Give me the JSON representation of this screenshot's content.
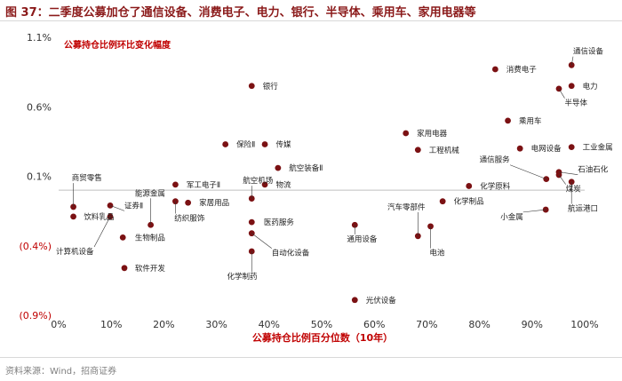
{
  "figure_title": "图 37：二季度公募加仓了通信设备、消费电子、电力、银行、半导体、乘用车、家用电器等",
  "source": "资料来源：Wind，招商证券",
  "colors": {
    "title": "#8b1a1a",
    "marker": "#7b1113",
    "axis_red": "#c00000",
    "baseline": "#bfbfbf"
  },
  "chart_data": {
    "type": "scatter",
    "title": "公募持仓比例环比变化幅度",
    "xlabel": "公募持仓比例百分位数（10年）",
    "ylabel": "",
    "xlim": [
      0,
      100
    ],
    "ylim": [
      -0.9,
      1.1
    ],
    "x_ticks": [
      0,
      10,
      20,
      30,
      40,
      50,
      60,
      70,
      80,
      90,
      100
    ],
    "x_tick_labels": [
      "0%",
      "10%",
      "20%",
      "30%",
      "40%",
      "50%",
      "60%",
      "70%",
      "80%",
      "90%",
      "100%"
    ],
    "y_ticks": [
      1.1,
      0.6,
      0.1,
      -0.4,
      -0.9
    ],
    "y_tick_labels": [
      "1.1%",
      "0.6%",
      "0.1%",
      "(0.4%)",
      "(0.9%)"
    ],
    "points": [
      {
        "label": "商贸零售",
        "x": 2.8,
        "y": -0.12,
        "lx": 2.5,
        "ly": 0.09
      },
      {
        "label": "饮料乳品",
        "x": 2.8,
        "y": -0.19,
        "lx": 4.8,
        "ly": -0.19
      },
      {
        "label": "计算机设备",
        "x": 9.8,
        "y": -0.19,
        "lx": -0.5,
        "ly": -0.44
      },
      {
        "label": "证券Ⅱ",
        "x": 9.8,
        "y": -0.11,
        "lx": 12.5,
        "ly": -0.11
      },
      {
        "label": "生物制品",
        "x": 12.2,
        "y": -0.34,
        "lx": 14.5,
        "ly": -0.34
      },
      {
        "label": "软件开发",
        "x": 12.5,
        "y": -0.56,
        "lx": 14.5,
        "ly": -0.56
      },
      {
        "label": "能源金属",
        "x": 17.5,
        "y": -0.25,
        "lx": 14.5,
        "ly": -0.02
      },
      {
        "label": "纺织服饰",
        "x": 22.2,
        "y": -0.08,
        "lx": 22,
        "ly": -0.2
      },
      {
        "label": "军工电子Ⅱ",
        "x": 22.2,
        "y": 0.04,
        "lx": 24.3,
        "ly": 0.04
      },
      {
        "label": "家居用品",
        "x": 24.6,
        "y": -0.09,
        "lx": 26.7,
        "ly": -0.09
      },
      {
        "label": "保险Ⅱ",
        "x": 31.7,
        "y": 0.33,
        "lx": 33.8,
        "ly": 0.33
      },
      {
        "label": "银行",
        "x": 36.7,
        "y": 0.75,
        "lx": 38.8,
        "ly": 0.75
      },
      {
        "label": "传媒",
        "x": 39.2,
        "y": 0.33,
        "lx": 41.3,
        "ly": 0.33
      },
      {
        "label": "航空装备Ⅱ",
        "x": 41.7,
        "y": 0.16,
        "lx": 43.8,
        "ly": 0.16
      },
      {
        "label": "航空机场",
        "x": 36.7,
        "y": -0.06,
        "lx": 35,
        "ly": 0.07
      },
      {
        "label": "物流",
        "x": 39.2,
        "y": 0.04,
        "lx": 41.3,
        "ly": 0.04
      },
      {
        "label": "医药服务",
        "x": 36.7,
        "y": -0.23,
        "lx": 39,
        "ly": -0.23
      },
      {
        "label": "自动化设备",
        "x": 36.7,
        "y": -0.31,
        "lx": 40.5,
        "ly": -0.45
      },
      {
        "label": "化学制药",
        "x": 36.7,
        "y": -0.44,
        "lx": 32,
        "ly": -0.62
      },
      {
        "label": "通用设备",
        "x": 56.3,
        "y": -0.25,
        "lx": 54.8,
        "ly": -0.35
      },
      {
        "label": "光伏设备",
        "x": 56.3,
        "y": -0.79,
        "lx": 58.4,
        "ly": -0.79
      },
      {
        "label": "家用电器",
        "x": 66.0,
        "y": 0.41,
        "lx": 68.1,
        "ly": 0.41
      },
      {
        "label": "工程机械",
        "x": 68.3,
        "y": 0.29,
        "lx": 70.4,
        "ly": 0.29
      },
      {
        "label": "汽车零部件",
        "x": 68.3,
        "y": -0.33,
        "lx": 62.5,
        "ly": -0.12
      },
      {
        "label": "电池",
        "x": 70.7,
        "y": -0.26,
        "lx": 70.5,
        "ly": -0.45
      },
      {
        "label": "化学制品",
        "x": 73.0,
        "y": -0.08,
        "lx": 75.1,
        "ly": -0.08
      },
      {
        "label": "化学原料",
        "x": 78.0,
        "y": 0.03,
        "lx": 80.1,
        "ly": 0.03
      },
      {
        "label": "消费电子",
        "x": 83.0,
        "y": 0.87,
        "lx": 85.1,
        "ly": 0.87
      },
      {
        "label": "乘用车",
        "x": 85.4,
        "y": 0.5,
        "lx": 87.5,
        "ly": 0.5
      },
      {
        "label": "电网设备",
        "x": 87.7,
        "y": 0.3,
        "lx": 89.8,
        "ly": 0.3
      },
      {
        "label": "通信服务",
        "x": 92.7,
        "y": 0.08,
        "lx": 80,
        "ly": 0.22
      },
      {
        "label": "小金属",
        "x": 92.6,
        "y": -0.14,
        "lx": 84,
        "ly": -0.19
      },
      {
        "label": "半导体",
        "x": 95.1,
        "y": 0.73,
        "lx": 96.2,
        "ly": 0.63
      },
      {
        "label": "通信设备",
        "x": 97.5,
        "y": 0.9,
        "lx": 97.8,
        "ly": 1.0
      },
      {
        "label": "电力",
        "x": 97.5,
        "y": 0.75,
        "lx": 99.6,
        "ly": 0.75
      },
      {
        "label": "工业金属",
        "x": 97.5,
        "y": 0.31,
        "lx": 99.6,
        "ly": 0.31
      },
      {
        "label": "石油石化",
        "x": 95.1,
        "y": 0.13,
        "lx": 98.7,
        "ly": 0.15
      },
      {
        "label": "煤炭",
        "x": 95.1,
        "y": 0.11,
        "lx": 96.4,
        "ly": 0.01
      },
      {
        "label": "航运港口",
        "x": 97.5,
        "y": 0.06,
        "lx": 96.8,
        "ly": -0.13
      }
    ]
  }
}
